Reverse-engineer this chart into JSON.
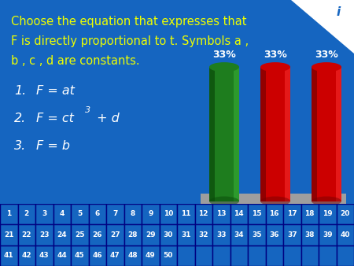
{
  "background_color": "#1565C0",
  "title_line1": "Choose the equation that expresses that",
  "title_line2": "F is directly proportional to t. Symbols a ,",
  "title_line3": "b , c , d are constants.",
  "opt1_num": "1.",
  "opt1_text": "F = at",
  "opt2_num": "2.",
  "opt2_text": "F = ct",
  "opt2_sup": "3",
  "opt2_rest": " + d",
  "opt3_num": "3.",
  "opt3_text": "F = b",
  "bar_labels": [
    "33%",
    "33%",
    "33%"
  ],
  "bar_colors": [
    "#1E7D1E",
    "#CC0000",
    "#CC0000"
  ],
  "bar_dark_colors": [
    "#0A4A0A",
    "#7A0000",
    "#7A0000"
  ],
  "bar_light_colors": [
    "#3CB83C",
    "#FF3333",
    "#FF3333"
  ],
  "platform_color": "#9E9E9E",
  "grid_row1": [
    1,
    2,
    3,
    4,
    5,
    6,
    7,
    8,
    9,
    10,
    11,
    12,
    13,
    14,
    15,
    16,
    17,
    18,
    19,
    20
  ],
  "grid_row2": [
    21,
    22,
    23,
    24,
    25,
    26,
    27,
    28,
    29,
    30,
    31,
    32,
    33,
    34,
    35,
    36,
    37,
    38,
    39,
    40
  ],
  "grid_row3": [
    41,
    42,
    43,
    44,
    45,
    46,
    47,
    48,
    49,
    50
  ],
  "text_color": "#FFFFFF",
  "title_color": "#EEFF00",
  "grid_border_color": "#000080",
  "grid_text_color": "#FFFFFF",
  "bar_label_color": "#FFFFFF",
  "ax_label_color": "#FFFFFF"
}
